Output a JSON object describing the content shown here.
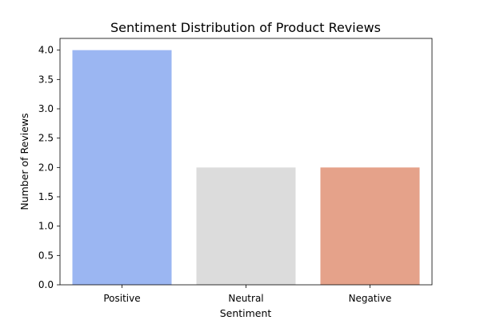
{
  "chart_data": {
    "type": "bar",
    "title": "Sentiment Distribution of Product Reviews",
    "xlabel": "Sentiment",
    "ylabel": "Number of Reviews",
    "categories": [
      "Positive",
      "Neutral",
      "Negative"
    ],
    "values": [
      4,
      2,
      2
    ],
    "colors": [
      "#9bb6f2",
      "#dcdcdc",
      "#e5a28a"
    ],
    "ylim": [
      0,
      4.2
    ],
    "yticks": [
      "0.0",
      "0.5",
      "1.0",
      "1.5",
      "2.0",
      "2.5",
      "3.0",
      "3.5",
      "4.0"
    ],
    "grid": false
  }
}
